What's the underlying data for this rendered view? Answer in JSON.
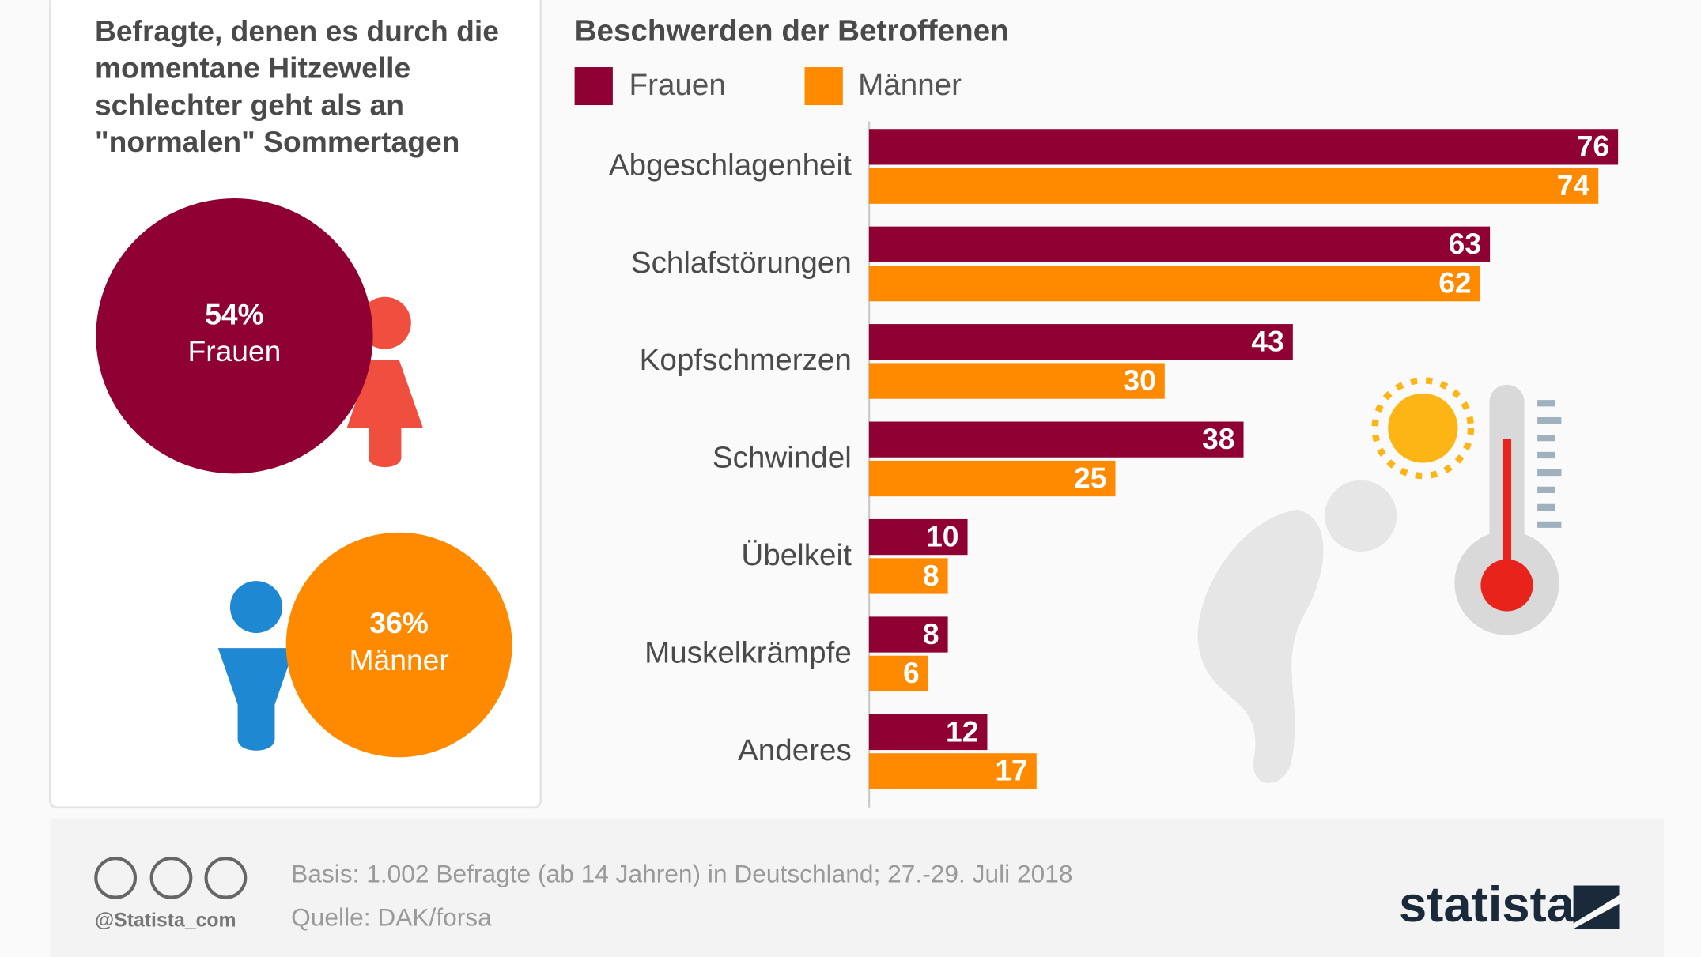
{
  "chart_data": [
    {
      "type": "bubble",
      "title": "Befragte, denen es durch die momentane Hitzewelle schlechter geht als an \"normalen\" Sommertagen",
      "categories": [
        "Frauen",
        "Männer"
      ],
      "values": [
        54,
        36
      ],
      "value_labels": [
        "54%",
        "36%"
      ],
      "colors": [
        "#8f0033",
        "#ff8a00"
      ]
    },
    {
      "type": "hbar",
      "title": "Beschwerden der Betroffenen",
      "categories": [
        "Abgeschlagenheit",
        "Schlafstörungen",
        "Kopfschmerzen",
        "Schwindel",
        "Übelkeit",
        "Muskelkrämpfe",
        "Anderes"
      ],
      "series": [
        {
          "name": "Frauen",
          "color": "#8f0033",
          "values": [
            76,
            63,
            43,
            38,
            10,
            8,
            12
          ]
        },
        {
          "name": "Männer",
          "color": "#ff8a00",
          "values": [
            74,
            62,
            30,
            25,
            8,
            6,
            17
          ]
        }
      ]
    }
  ],
  "footer": {
    "note": "Basis: 1.002 Befragte (ab 14 Jahren) in Deutschland; 27.-29. Juli 2018",
    "source": "Quelle: DAK/forsa",
    "handle": "@Statista_com",
    "brand": "statista"
  }
}
